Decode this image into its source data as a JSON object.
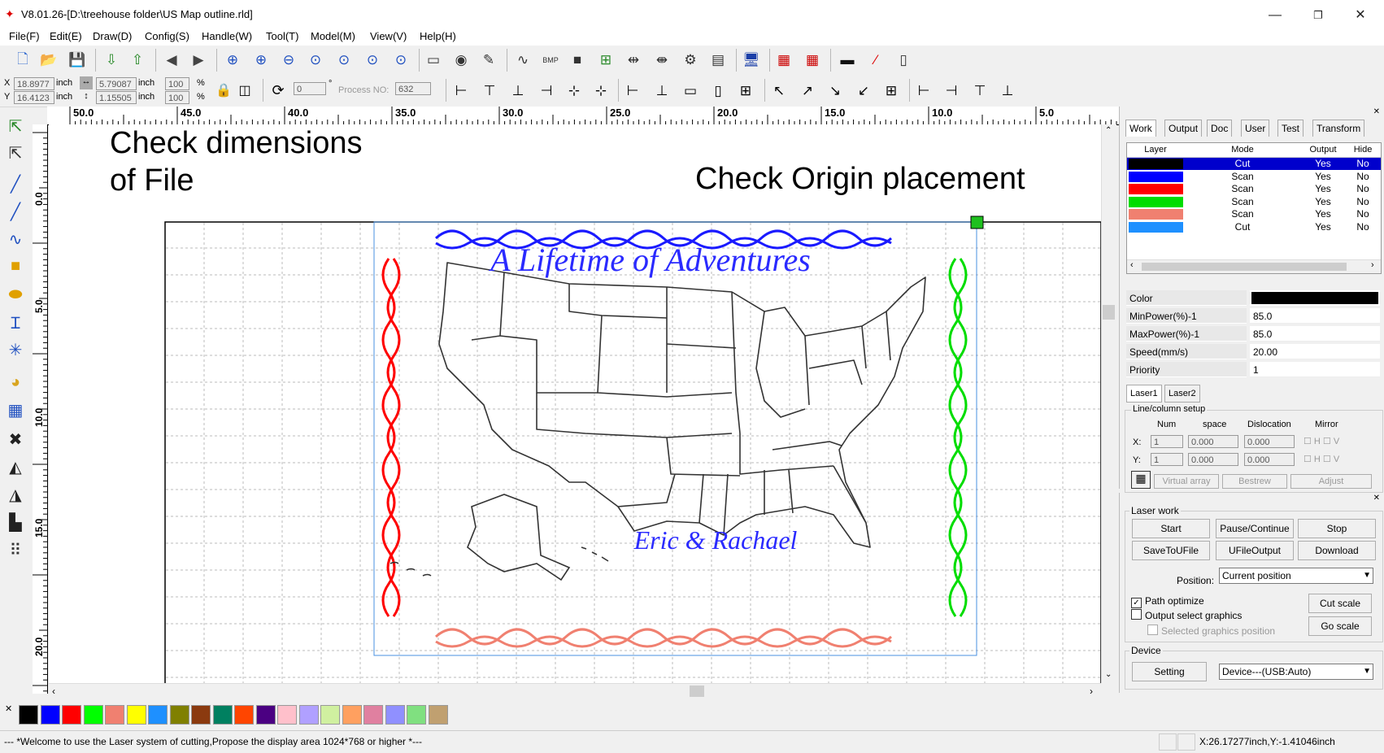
{
  "window": {
    "title": "V8.01.26-[D:\\treehouse folder\\US Map outline.rld]",
    "minimize": "—",
    "restore": "❐",
    "close": "✕"
  },
  "menu": [
    "File(F)",
    "Edit(E)",
    "Draw(D)",
    "Config(S)",
    "Handle(W)",
    "Tool(T)",
    "Model(M)",
    "View(V)",
    "Help(H)"
  ],
  "coords": {
    "x_label": "X",
    "x_value": "18.8977",
    "x_unit": "inch",
    "y_label": "Y",
    "y_value": "16.4123",
    "y_unit": "inch",
    "w_value": "5.79087",
    "w_unit": "inch",
    "h_value": "1.15505",
    "h_unit": "inch",
    "scale_x": "100",
    "scale_y": "100",
    "percent": "%",
    "angle": "0",
    "degree": "°",
    "process_no_label": "Process NO:",
    "process_no": "632"
  },
  "ruler_top_labels": [
    "50.0",
    "45.0",
    "40.0",
    "35.0",
    "30.0",
    "25.0",
    "20.0",
    "15.0",
    "10.0",
    "5.0"
  ],
  "ruler_left_labels": [
    "0.0",
    "5.0",
    "10.0",
    "15.0",
    "20.0"
  ],
  "annotations": {
    "dimensions_line1": "Check dimensions",
    "dimensions_line2": "of File",
    "origin": "Check Origin placement"
  },
  "design": {
    "title_text": "A Lifetime of Adventures",
    "names_text": "Eric & Rachael",
    "border_colors": {
      "top": "#1a1aff",
      "bottom": "#f08070",
      "left": "#ff0000",
      "right": "#00dd00"
    }
  },
  "right_panel": {
    "tabs": [
      "Work",
      "Output",
      "Doc",
      "User",
      "Test",
      "Transform"
    ],
    "layer_headers": [
      "Layer",
      "Mode",
      "Output",
      "Hide"
    ],
    "layers": [
      {
        "color": "#000000",
        "mode": "Cut",
        "output": "Yes",
        "hide": "No",
        "selected": true
      },
      {
        "color": "#0000ff",
        "mode": "Scan",
        "output": "Yes",
        "hide": "No"
      },
      {
        "color": "#ff0000",
        "mode": "Scan",
        "output": "Yes",
        "hide": "No"
      },
      {
        "color": "#00dd00",
        "mode": "Scan",
        "output": "Yes",
        "hide": "No"
      },
      {
        "color": "#f08070",
        "mode": "Scan",
        "output": "Yes",
        "hide": "No"
      },
      {
        "color": "#1e90ff",
        "mode": "Cut",
        "output": "Yes",
        "hide": "No"
      }
    ],
    "props": [
      {
        "key": "Color",
        "value": ""
      },
      {
        "key": "MinPower(%)-1",
        "value": "85.0"
      },
      {
        "key": "MaxPower(%)-1",
        "value": "85.0"
      },
      {
        "key": "Speed(mm/s)",
        "value": "20.00"
      },
      {
        "key": "Priority",
        "value": "1"
      }
    ],
    "laser_tabs": [
      "Laser1",
      "Laser2"
    ],
    "line_column": {
      "title": "Line/column setup",
      "headers": [
        "Num",
        "space",
        "Dislocation",
        "Mirror"
      ],
      "x_label": "X:",
      "y_label": "Y:",
      "x_num": "1",
      "x_space": "0.000",
      "x_disloc": "0.000",
      "y_num": "1",
      "y_space": "0.000",
      "y_disloc": "0.000",
      "mirror_h": "H",
      "mirror_v": "V",
      "buttons": [
        "Virtual array",
        "Bestrew",
        "Adjust"
      ]
    }
  },
  "laser_work": {
    "title": "Laser work",
    "start": "Start",
    "pause": "Pause/Continue",
    "stop": "Stop",
    "save_to_ufile": "SaveToUFile",
    "ufile_output": "UFileOutput",
    "download": "Download",
    "position_label": "Position:",
    "position_value": "Current position",
    "path_optimize": "Path optimize",
    "output_select": "Output select graphics",
    "selected_position": "Selected graphics position",
    "cut_scale": "Cut scale",
    "go_scale": "Go scale"
  },
  "device": {
    "title": "Device",
    "setting": "Setting",
    "device_value": "Device---(USB:Auto)"
  },
  "palette": [
    "#000000",
    "#0000ff",
    "#ff0000",
    "#00ff00",
    "#f08070",
    "#ffff00",
    "#1e90ff",
    "#808000",
    "#8b3a0f",
    "#008060",
    "#ff4500",
    "#4b0082",
    "#ffc0cb",
    "#b0a0ff",
    "#d0f0a0",
    "#ffa060",
    "#e080a0",
    "#9090ff",
    "#80e080",
    "#c0a070"
  ],
  "status": {
    "message": "--- *Welcome to use the Laser system of cutting,Propose the display area 1024*768 or higher *---",
    "coordinates": "X:26.17277inch,Y:-1.41046inch"
  }
}
